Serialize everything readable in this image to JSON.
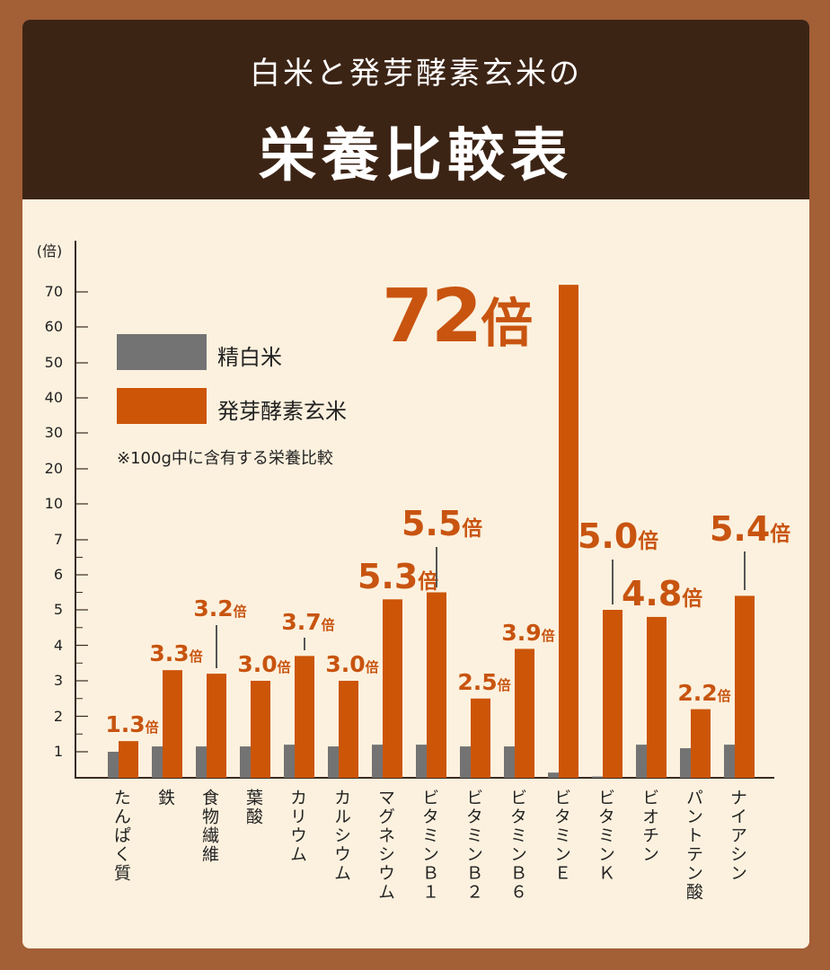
{
  "header": {
    "line1": "白米と発芽酵素玄米の",
    "line2": "栄養比較表"
  },
  "legend": {
    "white_rice": "精白米",
    "brown_rice": "発芽酵素玄米",
    "note": "※100g中に含有する栄養比較"
  },
  "colors": {
    "white_rice": "#737373",
    "brown_rice": "#cc5508",
    "header_bg": "#3c2415",
    "panel_bg": "#fcf1de",
    "frame": "#a35f36"
  },
  "chart_data": {
    "type": "bar",
    "ylabel": "(倍)",
    "y_ticks": [
      "1",
      "2",
      "3",
      "4",
      "5",
      "6",
      "7",
      "10",
      "20",
      "30",
      "40",
      "50",
      "60",
      "70"
    ],
    "y_scale": "piecewise (1–7 step 1, then 10–70 step 10)",
    "categories": [
      "たんぱく質",
      "鉄",
      "食物繊維",
      "葉酸",
      "カリウム",
      "カルシウム",
      "マグネシウム",
      "ビタミンＢ１",
      "ビタミンＢ２",
      "ビタミンＢ６",
      "ビタミンＥ",
      "ビタミンＫ",
      "ビオチン",
      "パントテン酸",
      "ナイアシン"
    ],
    "series": [
      {
        "name": "精白米",
        "values": [
          1.0,
          1.15,
          1.15,
          1.15,
          1.2,
          1.15,
          1.2,
          1.2,
          1.15,
          1.15,
          0.2,
          0.05,
          1.2,
          1.1,
          1.2
        ]
      },
      {
        "name": "発芽酵素玄米",
        "values": [
          1.3,
          3.3,
          3.2,
          3.0,
          3.7,
          3.0,
          5.3,
          5.5,
          2.5,
          3.9,
          72,
          5.0,
          4.8,
          2.2,
          5.4
        ]
      }
    ],
    "data_labels": [
      "1.3",
      "3.3",
      "3.2",
      "3.0",
      "3.7",
      "3.0",
      "5.3",
      "5.5",
      "2.5",
      "3.9",
      "72",
      "5.0",
      "4.8",
      "2.2",
      "5.4"
    ],
    "data_label_unit": "倍",
    "legend": "top-left inside"
  }
}
